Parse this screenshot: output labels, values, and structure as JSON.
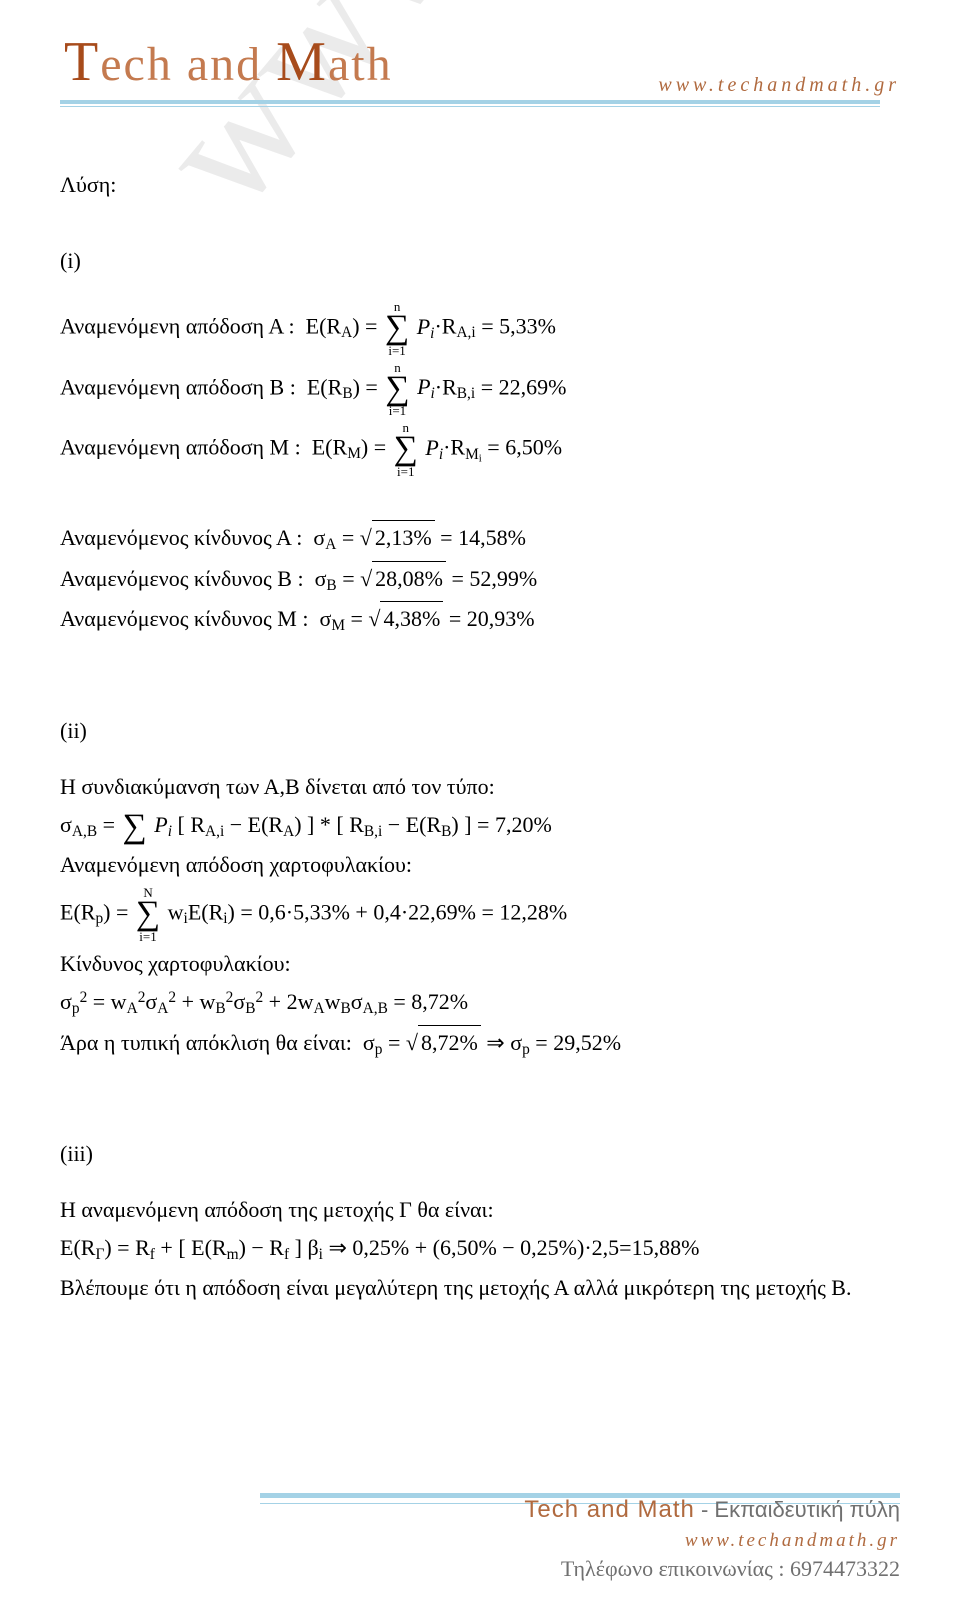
{
  "brand": {
    "prefix": "T",
    "word1rest": "ech and ",
    "word2pre": "M",
    "word2rest": "ath"
  },
  "top_url": "www.techandmath.gr",
  "watermark": "www.techandmath.gr",
  "solution_label": "Λύση:",
  "part1_label": "(i)",
  "line_EA": "Αναμενόμενη απόδοση Α :",
  "line_EB": "Αναμενόμενη απόδοση Β :",
  "line_EM": "Αναμενόμενη απόδοση Μ :",
  "line_sA": "Αναμενόμενος κίνδυνος Α :",
  "line_sB": "Αναμενόμενος κίνδυνος Β :",
  "line_sM": "Αναμενόμενος κίνδυνος Μ :",
  "val_EA": "5,33%",
  "val_EB": "22,69%",
  "val_EM": "6,50%",
  "sA_inside": "2,13%",
  "sA_out": "14,58%",
  "sB_inside": "28,08%",
  "sB_out": "52,99%",
  "sM_inside": "4,38%",
  "sM_out": "20,93%",
  "sum_upper": "n",
  "sum_lower": "i=1",
  "sum_upper_N": "N",
  "part2_label": "(ii)",
  "covar_intro": "Η συνδιακύμανση των Α,Β δίνεται από τον τύπο:",
  "covar_val": "7,20%",
  "port_ret_label": "Αναμενόμενη απόδοση χαρτοφυλακίου:",
  "port_ret_expr": "0,6·5,33% + 0,4·22,69% = 12,28%",
  "port_risk_label": "Κίνδυνος χαρτοφυλακίου:",
  "port_var_val": "8,72%",
  "typ_dev_label": "Άρα η τυπική απόκλιση θα είναι:",
  "typ_dev_in": "8,72%",
  "typ_dev_out": "29,52%",
  "part3_label": "(iii)",
  "capm_intro": "Η αναμενόμενη απόδοση της μετοχής Γ θα είναι:",
  "capm_rhs": "0,25% + (6,50% − 0,25%)·2,5=15,88%",
  "conclusion": "Βλέπουμε ότι η απόδοση είναι μεγαλύτερη της μετοχής Α αλλά μικρότερη της μετοχής Β.",
  "footer_brand": "Tech and Math",
  "footer_tag": " - Εκπαιδευτική πύλη",
  "footer_url": "www.techandmath.gr",
  "footer_phone": "Τηλέφωνο επικοινωνίας : 6974473322",
  "colors": {
    "brand": "#a74b1b",
    "brand_light": "#c47a4f",
    "rule": "#a4d2e6",
    "url": "#b06a3f",
    "text": "#000000",
    "gray": "#707070",
    "bg": "#ffffff",
    "watermark": "rgba(0,0,0,0.08)"
  }
}
